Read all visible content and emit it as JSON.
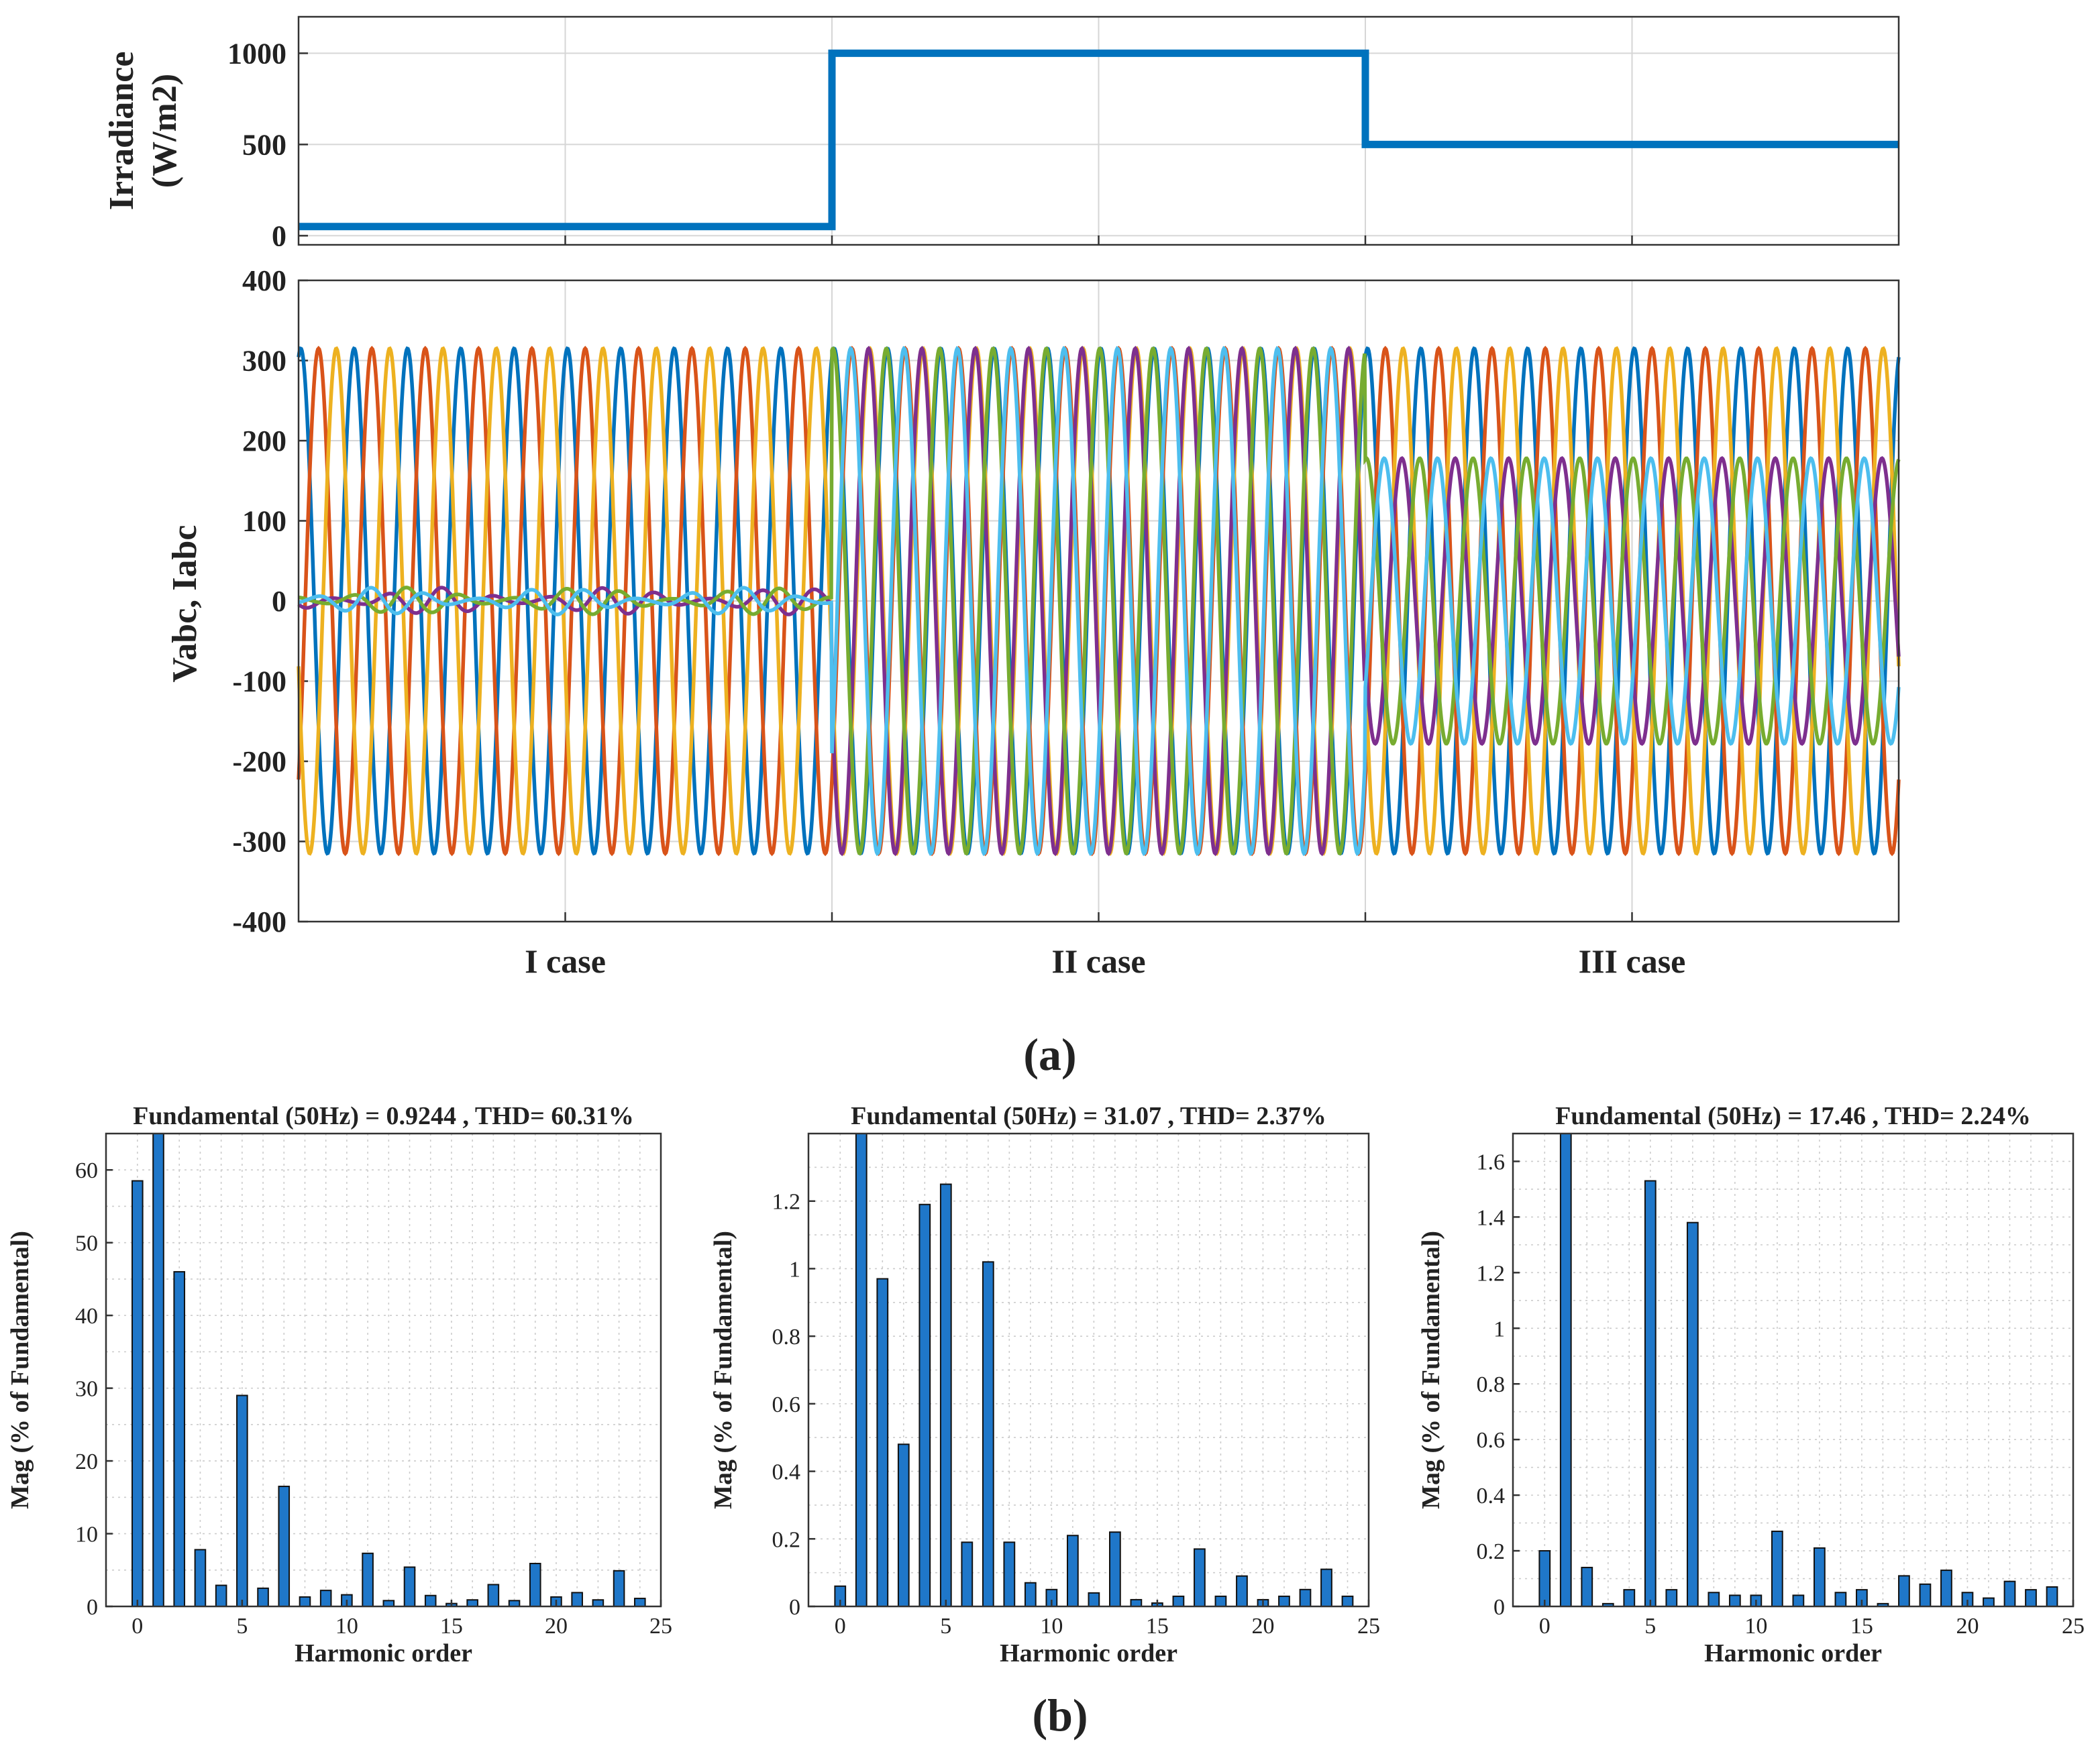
{
  "colors": {
    "irradiance": "#0072BD",
    "series": [
      "#0072BD",
      "#D95319",
      "#EDB120",
      "#7E2F8E",
      "#77AC30",
      "#4DBEEE"
    ],
    "bar": "#1f77c9"
  },
  "panel_a_label": "(a)",
  "panel_b_label": "(b)",
  "chart_data": [
    {
      "type": "line",
      "name": "irradiance",
      "ylabel_line1": "Irradiance",
      "ylabel_line2": "(W/m2)",
      "ylim": [
        -50,
        1200
      ],
      "yticks": [
        "0",
        "500",
        "1000"
      ],
      "ytick_values": [
        0,
        500,
        1000
      ],
      "x_segments": [
        "I case",
        "II case",
        "III case"
      ],
      "x": [
        0,
        1,
        1,
        2,
        2,
        3
      ],
      "values": [
        50,
        50,
        1000,
        1000,
        500,
        500
      ],
      "grid": true
    },
    {
      "type": "line",
      "name": "vabc-iabc",
      "ylabel": "Vabc, Iabc",
      "ylim": [
        -400,
        400
      ],
      "yticks": [
        "400",
        "300",
        "200",
        "100",
        "0",
        "-100",
        "-200",
        "-300",
        "-400"
      ],
      "ytick_values": [
        400,
        300,
        200,
        100,
        0,
        -100,
        -200,
        -300,
        -400
      ],
      "xticklabels": [
        "I case",
        "II case",
        "III case"
      ],
      "cycles_per_case": 10,
      "voltage_amplitude": 315,
      "current_amplitude_per_case": [
        14,
        315,
        178
      ],
      "series": [
        {
          "name": "Va",
          "kind": "voltage",
          "phase_deg": 0
        },
        {
          "name": "Vb",
          "kind": "voltage",
          "phase_deg": -120
        },
        {
          "name": "Vc",
          "kind": "voltage",
          "phase_deg": 120
        },
        {
          "name": "Ia",
          "kind": "current",
          "phase_deg": 180
        },
        {
          "name": "Ib",
          "kind": "current",
          "phase_deg": 60
        },
        {
          "name": "Ic",
          "kind": "current",
          "phase_deg": -60
        }
      ],
      "grid": true
    },
    {
      "type": "bar",
      "name": "fft-case-1",
      "title": "Fundamental (50Hz) = 0.9244 , THD= 60.31%",
      "xlabel": "Harmonic order",
      "ylabel": "Mag (% of Fundamental)",
      "xlim": [
        -1.5,
        25
      ],
      "ylim": [
        0,
        65
      ],
      "xticks": [
        "0",
        "5",
        "10",
        "15",
        "20",
        "25"
      ],
      "xtick_values": [
        0,
        5,
        10,
        15,
        20,
        25
      ],
      "yticks": [
        "0",
        "10",
        "20",
        "30",
        "40",
        "50",
        "60"
      ],
      "ytick_values": [
        0,
        10,
        20,
        30,
        40,
        50,
        60
      ],
      "harmonics": [
        0,
        1,
        2,
        3,
        4,
        5,
        6,
        7,
        8,
        9,
        10,
        11,
        12,
        13,
        14,
        15,
        16,
        17,
        18,
        19,
        20,
        21,
        22,
        23,
        24
      ],
      "values": [
        58.5,
        65,
        46,
        7.8,
        2.9,
        29,
        2.5,
        16.5,
        1.3,
        2.2,
        1.6,
        7.3,
        0.8,
        5.4,
        1.5,
        0.4,
        0.9,
        3,
        0.8,
        5.9,
        1.3,
        1.9,
        0.9,
        4.9,
        1.1
      ]
    },
    {
      "type": "bar",
      "name": "fft-case-2",
      "title": "Fundamental (50Hz) = 31.07 , THD= 2.37%",
      "xlabel": "Harmonic order",
      "ylabel": "Mag (% of Fundamental)",
      "xlim": [
        -1.5,
        25
      ],
      "ylim": [
        0,
        1.4
      ],
      "xticks": [
        "0",
        "5",
        "10",
        "15",
        "20",
        "25"
      ],
      "xtick_values": [
        0,
        5,
        10,
        15,
        20,
        25
      ],
      "yticks": [
        "0",
        "0.2",
        "0.4",
        "0.6",
        "0.8",
        "1",
        "1.2"
      ],
      "ytick_values": [
        0,
        0.2,
        0.4,
        0.6,
        0.8,
        1,
        1.2
      ],
      "harmonics": [
        0,
        1,
        2,
        3,
        4,
        5,
        6,
        7,
        8,
        9,
        10,
        11,
        12,
        13,
        14,
        15,
        16,
        17,
        18,
        19,
        20,
        21,
        22,
        23,
        24
      ],
      "values": [
        0.06,
        1.4,
        0.97,
        0.48,
        1.19,
        1.25,
        0.19,
        1.02,
        0.19,
        0.07,
        0.05,
        0.21,
        0.04,
        0.22,
        0.02,
        0.01,
        0.03,
        0.17,
        0.03,
        0.09,
        0.02,
        0.03,
        0.05,
        0.11,
        0.03
      ]
    },
    {
      "type": "bar",
      "name": "fft-case-3",
      "title": "Fundamental (50Hz) = 17.46 , THD= 2.24%",
      "xlabel": "Harmonic order",
      "ylabel": "Mag (% of Fundamental)",
      "xlim": [
        -1.5,
        25
      ],
      "ylim": [
        0,
        1.7
      ],
      "xticks": [
        "0",
        "5",
        "10",
        "15",
        "20",
        "25"
      ],
      "xtick_values": [
        0,
        5,
        10,
        15,
        20,
        25
      ],
      "yticks": [
        "0",
        "0.2",
        "0.4",
        "0.6",
        "0.8",
        "1",
        "1.2",
        "1.4",
        "1.6"
      ],
      "ytick_values": [
        0,
        0.2,
        0.4,
        0.6,
        0.8,
        1,
        1.2,
        1.4,
        1.6
      ],
      "harmonics": [
        0,
        1,
        2,
        3,
        4,
        5,
        6,
        7,
        8,
        9,
        10,
        11,
        12,
        13,
        14,
        15,
        16,
        17,
        18,
        19,
        20,
        21,
        22,
        23,
        24
      ],
      "values": [
        0.2,
        1.7,
        0.14,
        0.01,
        0.06,
        1.53,
        0.06,
        1.38,
        0.05,
        0.04,
        0.04,
        0.27,
        0.04,
        0.21,
        0.05,
        0.06,
        0.01,
        0.11,
        0.08,
        0.13,
        0.05,
        0.03,
        0.09,
        0.06,
        0.07
      ]
    }
  ]
}
